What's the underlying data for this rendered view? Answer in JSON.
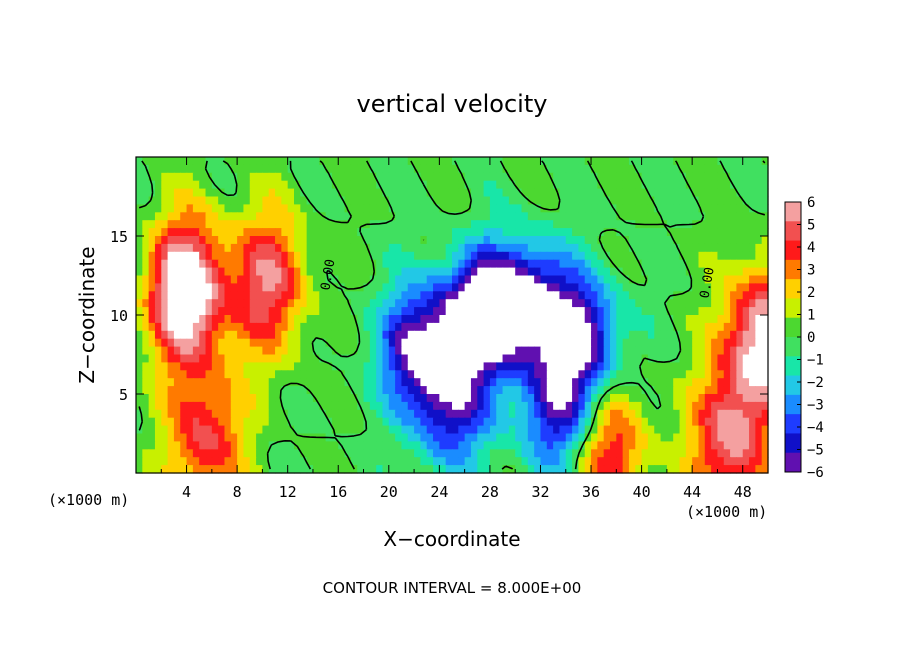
{
  "chart_data": {
    "type": "heatmap",
    "title": "vertical velocity",
    "xlabel": "X−coordinate",
    "ylabel": "Z−coordinate",
    "x_unit_left": "(×1000 m)",
    "x_unit_right": "(×1000 m)",
    "footer": "CONTOUR INTERVAL = 8.000E+00",
    "xlim": [
      0,
      50
    ],
    "ylim": [
      0,
      20
    ],
    "x_ticks": [
      4,
      8,
      12,
      16,
      20,
      24,
      28,
      32,
      36,
      40,
      44,
      48
    ],
    "x_tick_labels": [
      "4",
      "8",
      "12",
      "16",
      "20",
      "24",
      "28",
      "32",
      "36",
      "40",
      "44",
      "48"
    ],
    "y_ticks": [
      5,
      10,
      15
    ],
    "y_tick_labels": [
      "5",
      "10",
      "15"
    ],
    "contour_labels": [
      {
        "text": "0.00",
        "x": 15.5,
        "y": 12.5
      },
      {
        "text": "0.00",
        "x": 45.5,
        "y": 12.0
      }
    ],
    "colorbar": {
      "range": [
        -6,
        6
      ],
      "tick_values": [
        6,
        5,
        4,
        3,
        2,
        1,
        0,
        -1,
        -2,
        -3,
        -4,
        -5,
        -6
      ],
      "tick_labels": [
        "6",
        "5",
        "4",
        "3",
        "2",
        "1",
        "0",
        "−1",
        "−2",
        "−3",
        "−4",
        "−5",
        "−6"
      ],
      "colors": [
        "#f4a0a0",
        "#f25050",
        "#ff1a1a",
        "#ff7a00",
        "#ffd000",
        "#c8f000",
        "#4cd830",
        "#40e060",
        "#18e6a8",
        "#22c8e6",
        "#1a8cff",
        "#1e3cff",
        "#1010c8",
        "#6010b0"
      ]
    },
    "features": [
      {
        "kind": "updraft",
        "x": 4.0,
        "y": 11.5,
        "amplitude": 8.0
      },
      {
        "kind": "updraft",
        "x": 10.5,
        "y": 12.0,
        "amplitude": 5.0
      },
      {
        "kind": "updraft",
        "x": 5.5,
        "y": 2.2,
        "amplitude": 4.5
      },
      {
        "kind": "updraft",
        "x": 49.5,
        "y": 8.5,
        "amplitude": 6.5
      },
      {
        "kind": "updraft",
        "x": 47.0,
        "y": 2.0,
        "amplitude": 5.5
      },
      {
        "kind": "updraft",
        "x": 37.5,
        "y": 1.3,
        "amplitude": 4.5
      },
      {
        "kind": "downdraft",
        "x": 27.5,
        "y": 10.0,
        "amplitude": -7.5
      },
      {
        "kind": "downdraft",
        "x": 22.5,
        "y": 8.0,
        "amplitude": -6.0
      },
      {
        "kind": "downdraft",
        "x": 35.0,
        "y": 8.5,
        "amplitude": -6.5
      },
      {
        "kind": "downdraft",
        "x": 31.0,
        "y": 11.0,
        "amplitude": -5.0
      },
      {
        "kind": "downdraft",
        "x": 25.0,
        "y": 4.0,
        "amplitude": -4.5
      },
      {
        "kind": "downdraft",
        "x": 33.5,
        "y": 3.5,
        "amplitude": -4.5
      }
    ]
  }
}
